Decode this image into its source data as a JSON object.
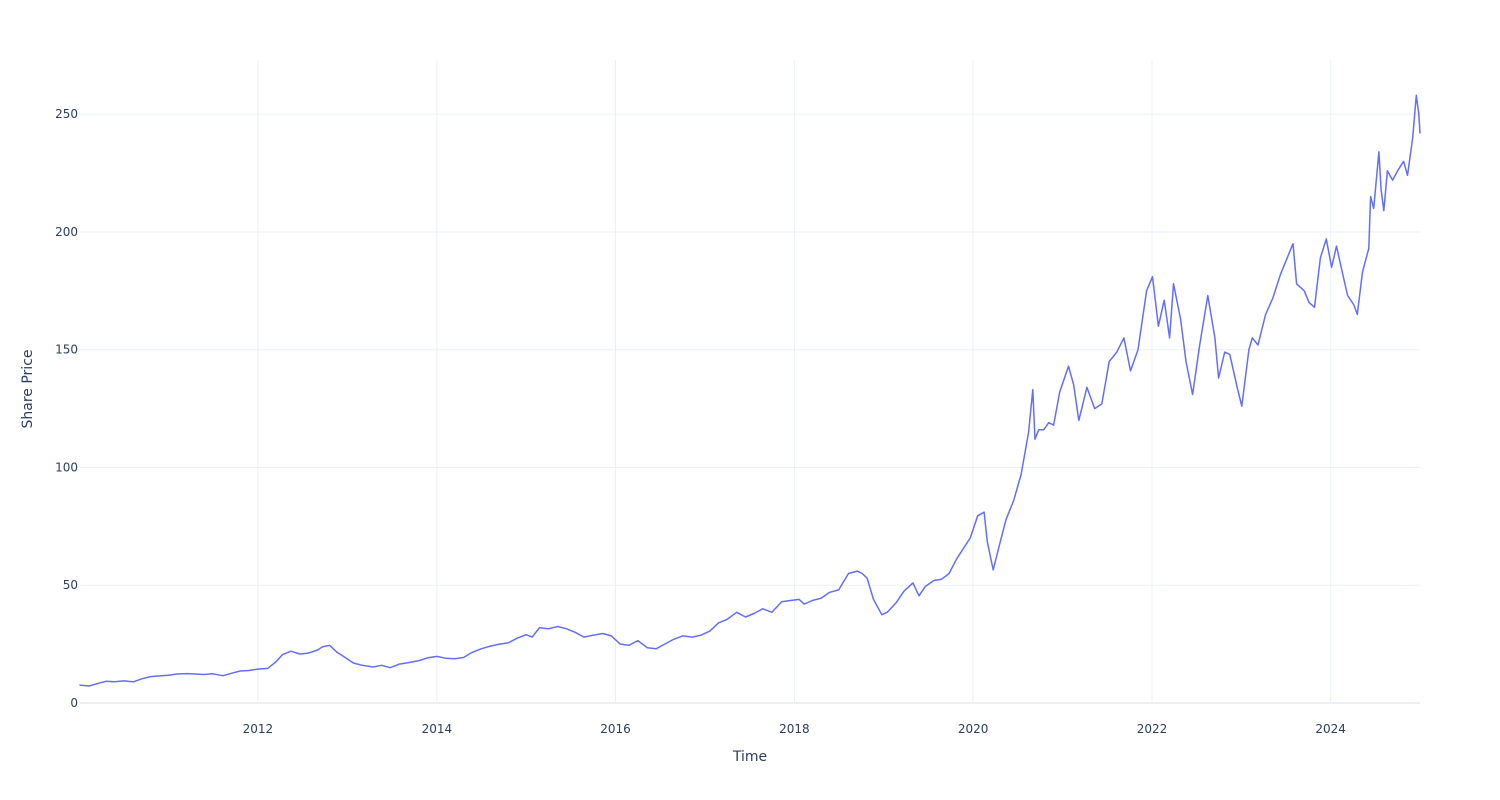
{
  "chart_data": {
    "type": "line",
    "title": "",
    "xlabel": "Time",
    "ylabel": "Share Price",
    "xlim": [
      "2010-01-04",
      "2024-12-31"
    ],
    "ylim": [
      0,
      273
    ],
    "x_tick_labels": [
      "2012",
      "2014",
      "2016",
      "2018",
      "2020",
      "2022",
      "2024"
    ],
    "y_tick_labels": [
      "0",
      "50",
      "100",
      "150",
      "200",
      "250"
    ],
    "y_ticks": [
      0,
      50,
      100,
      150,
      200,
      250
    ],
    "grid": true,
    "legend": "none",
    "series": [
      {
        "color": "#636efa",
        "x": [
          "2010-01-04",
          "2010-02-10",
          "2010-03-15",
          "2010-04-20",
          "2010-05-25",
          "2010-07-01",
          "2010-08-10",
          "2010-09-15",
          "2010-10-20",
          "2010-11-25",
          "2011-01-01",
          "2011-02-05",
          "2011-03-15",
          "2011-04-20",
          "2011-05-25",
          "2011-07-01",
          "2011-08-10",
          "2011-09-15",
          "2011-10-20",
          "2011-11-25",
          "2012-01-01",
          "2012-02-10",
          "2012-03-15",
          "2012-04-10",
          "2012-05-15",
          "2012-06-20",
          "2012-07-25",
          "2012-09-01",
          "2012-09-20",
          "2012-10-20",
          "2012-11-20",
          "2012-12-20",
          "2013-01-25",
          "2013-03-01",
          "2013-04-15",
          "2013-05-20",
          "2013-06-25",
          "2013-08-01",
          "2013-09-10",
          "2013-10-20",
          "2013-11-25",
          "2014-01-01",
          "2014-02-05",
          "2014-03-15",
          "2014-04-20",
          "2014-05-25",
          "2014-07-01",
          "2014-08-10",
          "2014-09-15",
          "2014-10-20",
          "2014-11-25",
          "2015-01-01",
          "2015-01-25",
          "2015-02-25",
          "2015-04-01",
          "2015-05-10",
          "2015-06-15",
          "2015-07-20",
          "2015-08-25",
          "2015-10-01",
          "2015-11-10",
          "2015-12-15",
          "2016-01-20",
          "2016-02-25",
          "2016-04-01",
          "2016-05-10",
          "2016-06-15",
          "2016-07-20",
          "2016-08-25",
          "2016-10-01",
          "2016-11-10",
          "2016-12-15",
          "2017-01-20",
          "2017-02-25",
          "2017-04-01",
          "2017-05-10",
          "2017-06-15",
          "2017-07-20",
          "2017-08-25",
          "2017-10-01",
          "2017-11-10",
          "2017-12-15",
          "2018-01-20",
          "2018-02-10",
          "2018-03-15",
          "2018-04-20",
          "2018-05-25",
          "2018-07-01",
          "2018-08-10",
          "2018-09-15",
          "2018-10-05",
          "2018-10-25",
          "2018-11-20",
          "2018-12-24",
          "2019-01-15",
          "2019-02-20",
          "2019-03-25",
          "2019-04-30",
          "2019-05-25",
          "2019-06-20",
          "2019-07-25",
          "2019-08-25",
          "2019-09-25",
          "2019-10-25",
          "2019-11-25",
          "2019-12-20",
          "2020-01-20",
          "2020-02-15",
          "2020-02-28",
          "2020-03-23",
          "2020-04-15",
          "2020-05-15",
          "2020-06-15",
          "2020-07-15",
          "2020-08-15",
          "2020-09-01",
          "2020-09-10",
          "2020-09-25",
          "2020-10-15",
          "2020-11-05",
          "2020-11-25",
          "2020-12-20",
          "2021-01-25",
          "2021-02-15",
          "2021-03-08",
          "2021-04-10",
          "2021-05-12",
          "2021-06-10",
          "2021-07-10",
          "2021-08-10",
          "2021-09-08",
          "2021-10-05",
          "2021-11-05",
          "2021-12-10",
          "2022-01-03",
          "2022-01-27",
          "2022-02-20",
          "2022-03-14",
          "2022-03-30",
          "2022-04-28",
          "2022-05-20",
          "2022-06-16",
          "2022-07-15",
          "2022-08-17",
          "2022-09-15",
          "2022-09-30",
          "2022-10-25",
          "2022-11-15",
          "2022-12-15",
          "2023-01-03",
          "2023-02-01",
          "2023-02-15",
          "2023-03-10",
          "2023-04-10",
          "2023-05-10",
          "2023-06-10",
          "2023-07-31",
          "2023-08-15",
          "2023-09-15",
          "2023-10-05",
          "2023-10-27",
          "2023-11-20",
          "2023-12-14",
          "2024-01-05",
          "2024-01-25",
          "2024-02-15",
          "2024-03-10",
          "2024-04-05",
          "2024-04-19",
          "2024-05-10",
          "2024-06-05",
          "2024-06-12",
          "2024-06-25",
          "2024-07-16",
          "2024-07-25",
          "2024-08-05",
          "2024-08-20",
          "2024-09-10",
          "2024-10-01",
          "2024-10-25",
          "2024-11-10",
          "2024-12-01",
          "2024-12-16",
          "2024-12-26",
          "2024-12-31"
        ],
        "y": [
          7.6,
          7.2,
          8.2,
          9.2,
          9.0,
          9.4,
          9.0,
          10.3,
          11.2,
          11.5,
          11.8,
          12.3,
          12.5,
          12.3,
          12.1,
          12.4,
          11.6,
          12.6,
          13.6,
          13.8,
          14.4,
          14.7,
          17.5,
          20.5,
          22.0,
          20.8,
          21.2,
          22.5,
          23.8,
          24.5,
          21.5,
          19.5,
          17.0,
          16.0,
          15.3,
          16.0,
          15.0,
          16.5,
          17.2,
          18.0,
          19.2,
          19.8,
          19.0,
          18.8,
          19.3,
          21.5,
          23.0,
          24.2,
          25.0,
          25.5,
          27.5,
          29.0,
          28.0,
          32.0,
          31.5,
          32.5,
          31.5,
          30.0,
          28.0,
          28.8,
          29.5,
          28.5,
          25.0,
          24.5,
          26.5,
          23.5,
          23.0,
          25.0,
          27.0,
          28.5,
          28.0,
          28.8,
          30.5,
          34.0,
          35.5,
          38.5,
          36.5,
          38.0,
          40.0,
          38.5,
          43.0,
          43.5,
          44.0,
          42.0,
          43.5,
          44.5,
          47.0,
          48.0,
          55.0,
          56.0,
          55.0,
          53.0,
          44.0,
          37.5,
          38.5,
          42.5,
          47.5,
          51.0,
          45.5,
          49.5,
          52.0,
          52.5,
          55.0,
          61.0,
          66.0,
          70.0,
          79.5,
          81.0,
          68.5,
          56.5,
          66.0,
          78.0,
          86.0,
          97.0,
          115.0,
          133.0,
          112.0,
          116.0,
          116.0,
          119.0,
          118.0,
          132.0,
          143.0,
          135.0,
          120.0,
          134.0,
          125.0,
          127.0,
          145.0,
          149.0,
          155.0,
          141.0,
          150.0,
          175.0,
          181.0,
          160.0,
          171.0,
          155.0,
          178.0,
          163.0,
          145.0,
          131.0,
          152.0,
          173.0,
          155.0,
          138.0,
          149.0,
          148.0,
          134.0,
          126.0,
          150.0,
          155.0,
          152.0,
          165.0,
          172.0,
          182.0,
          195.0,
          178.0,
          175.0,
          170.0,
          168.0,
          189.0,
          197.0,
          185.0,
          194.0,
          184.0,
          173.0,
          169.0,
          165.0,
          183.0,
          193.0,
          215.0,
          210.0,
          234.0,
          218.0,
          209.0,
          226.0,
          222.0,
          226.0,
          230.0,
          224.0,
          240.0,
          258.0,
          250.0,
          242.0
        ]
      }
    ]
  }
}
